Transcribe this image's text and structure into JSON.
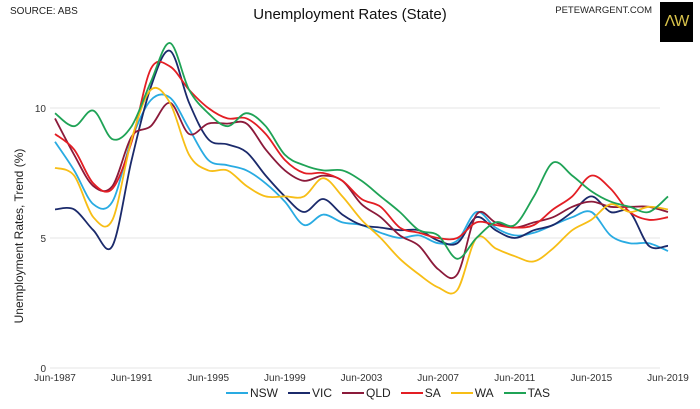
{
  "header": {
    "source": "SOURCE: ABS",
    "site": "PETEWARGENT.COM",
    "logo_text": "ΛW"
  },
  "chart_data": {
    "type": "line",
    "title": "Unemployment Rates (State)",
    "xlabel": "",
    "ylabel": "Unemployment Rates, Trend (%)",
    "ylim": [
      0,
      13
    ],
    "yticks": [
      0,
      5,
      10
    ],
    "x": [
      1987,
      1988,
      1989,
      1990,
      1991,
      1992,
      1993,
      1994,
      1995,
      1996,
      1997,
      1998,
      1999,
      2000,
      2001,
      2002,
      2003,
      2004,
      2005,
      2006,
      2007,
      2008,
      2009,
      2010,
      2011,
      2012,
      2013,
      2014,
      2015,
      2016,
      2017,
      2018,
      2019
    ],
    "xtick_labels": [
      "Jun-1987",
      "Jun-1991",
      "Jun-1995",
      "Jun-1999",
      "Jun-2003",
      "Jun-2007",
      "Jun-2011",
      "Jun-2015",
      "Jun-2019"
    ],
    "xtick_years": [
      1987,
      1991,
      1995,
      1999,
      2003,
      2007,
      2011,
      2015,
      2019
    ],
    "grid": true,
    "legend": "bottom",
    "series": [
      {
        "name": "NSW",
        "color": "#29ABE2",
        "values": [
          8.7,
          7.6,
          6.3,
          6.4,
          8.8,
          10.3,
          10.4,
          9.2,
          8.0,
          7.8,
          7.6,
          7.1,
          6.4,
          5.5,
          5.9,
          5.6,
          5.5,
          5.2,
          5.0,
          5.1,
          4.8,
          4.9,
          6.0,
          5.4,
          5.1,
          5.2,
          5.5,
          5.8,
          6.0,
          5.1,
          4.8,
          4.8,
          4.5
        ]
      },
      {
        "name": "VIC",
        "color": "#1B2A6B",
        "values": [
          6.1,
          6.1,
          5.3,
          4.7,
          8.0,
          10.8,
          12.2,
          10.2,
          8.8,
          8.6,
          8.3,
          7.4,
          6.6,
          6.0,
          6.5,
          5.9,
          5.5,
          5.4,
          5.3,
          5.3,
          4.9,
          4.8,
          5.8,
          5.3,
          5.0,
          5.3,
          5.5,
          6.0,
          6.6,
          6.0,
          6.0,
          4.7,
          4.7
        ]
      },
      {
        "name": "QLD",
        "color": "#8B1A3A",
        "values": [
          9.6,
          8.2,
          7.0,
          7.0,
          8.9,
          9.3,
          10.2,
          9.0,
          9.4,
          9.4,
          9.4,
          8.4,
          7.6,
          7.2,
          7.4,
          7.2,
          6.3,
          5.8,
          5.1,
          4.7,
          3.8,
          3.6,
          5.9,
          5.6,
          5.4,
          5.6,
          5.8,
          6.2,
          6.4,
          6.2,
          6.2,
          6.2,
          6.0
        ]
      },
      {
        "name": "SA",
        "color": "#E31E24",
        "values": [
          9.0,
          8.4,
          7.1,
          6.9,
          8.7,
          11.5,
          11.6,
          10.7,
          10.0,
          9.6,
          9.6,
          9.0,
          8.0,
          7.5,
          7.5,
          7.2,
          6.5,
          6.2,
          5.4,
          5.2,
          5.0,
          5.0,
          5.6,
          5.5,
          5.4,
          5.5,
          6.1,
          6.6,
          7.4,
          6.9,
          6.0,
          5.7,
          5.8
        ]
      },
      {
        "name": "WA",
        "color": "#F7BE16",
        "values": [
          7.7,
          7.4,
          5.8,
          5.7,
          8.8,
          10.7,
          10.2,
          8.2,
          7.6,
          7.6,
          7.0,
          6.6,
          6.6,
          6.6,
          7.3,
          6.6,
          5.7,
          5.0,
          4.2,
          3.6,
          3.1,
          3.0,
          5.0,
          4.6,
          4.3,
          4.1,
          4.6,
          5.3,
          5.7,
          6.3,
          6.0,
          6.2,
          6.1
        ]
      },
      {
        "name": "TAS",
        "color": "#1FA356",
        "values": [
          9.8,
          9.3,
          9.9,
          8.8,
          9.3,
          11.0,
          12.5,
          10.7,
          9.8,
          9.3,
          9.8,
          9.3,
          8.2,
          7.8,
          7.6,
          7.6,
          7.2,
          6.6,
          6.0,
          5.3,
          5.1,
          4.2,
          5.0,
          5.6,
          5.5,
          6.6,
          7.9,
          7.4,
          6.8,
          6.4,
          6.2,
          6.0,
          6.6
        ]
      }
    ]
  }
}
